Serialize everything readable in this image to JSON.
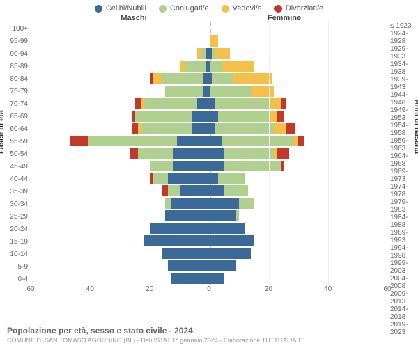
{
  "legend": [
    {
      "label": "Celibi/Nubili",
      "color": "#3b6a99"
    },
    {
      "label": "Coniugati/e",
      "color": "#b0d090"
    },
    {
      "label": "Vedovi/e",
      "color": "#f5c04a"
    },
    {
      "label": "Divorziati/e",
      "color": "#c0392b"
    }
  ],
  "header_m": "Maschi",
  "header_f": "Femmine",
  "ylabel_left": "Fasce di età",
  "ylabel_right": "Anni di nascita",
  "title": "Popolazione per età, sesso e stato civile - 2024",
  "subtitle": "COMUNE DI SAN TOMASO AGORDINO (BL) - Dati ISTAT 1° gennaio 2024 - Elaborazione TUTTITALIA.IT",
  "xmax": 60,
  "xticks": [
    60,
    40,
    20,
    0,
    20,
    40,
    60
  ],
  "colors": {
    "celibi": "#3b6a99",
    "coniugati": "#b0d090",
    "vedovi": "#f5c04a",
    "divorziati": "#c0392b",
    "grid": "#eeeeee",
    "dash": "#bbbbbb"
  },
  "rows": [
    {
      "age": "100+",
      "birth": "≤ 1923",
      "m": {
        "c": 0,
        "co": 0,
        "v": 0,
        "d": 0
      },
      "f": {
        "c": 0,
        "co": 0,
        "v": 0,
        "d": 0
      }
    },
    {
      "age": "95-99",
      "birth": "1924-1928",
      "m": {
        "c": 0,
        "co": 0,
        "v": 0,
        "d": 0
      },
      "f": {
        "c": 0,
        "co": 0,
        "v": 3,
        "d": 0
      }
    },
    {
      "age": "90-94",
      "birth": "1929-1933",
      "m": {
        "c": 1,
        "co": 2,
        "v": 1,
        "d": 0
      },
      "f": {
        "c": 1,
        "co": 1,
        "v": 5,
        "d": 0
      }
    },
    {
      "age": "85-89",
      "birth": "1934-1938",
      "m": {
        "c": 1,
        "co": 7,
        "v": 2,
        "d": 0
      },
      "f": {
        "c": 0,
        "co": 4,
        "v": 11,
        "d": 0
      }
    },
    {
      "age": "80-84",
      "birth": "1939-1943",
      "m": {
        "c": 2,
        "co": 14,
        "v": 3,
        "d": 1
      },
      "f": {
        "c": 1,
        "co": 7,
        "v": 13,
        "d": 0
      }
    },
    {
      "age": "75-79",
      "birth": "1944-1948",
      "m": {
        "c": 2,
        "co": 13,
        "v": 0,
        "d": 0
      },
      "f": {
        "c": 0,
        "co": 14,
        "v": 8,
        "d": 0
      }
    },
    {
      "age": "70-74",
      "birth": "1949-1953",
      "m": {
        "c": 4,
        "co": 18,
        "v": 1,
        "d": 2
      },
      "f": {
        "c": 2,
        "co": 18,
        "v": 4,
        "d": 2
      }
    },
    {
      "age": "65-69",
      "birth": "1954-1958",
      "m": {
        "c": 6,
        "co": 19,
        "v": 0,
        "d": 1
      },
      "f": {
        "c": 3,
        "co": 17,
        "v": 3,
        "d": 2
      }
    },
    {
      "age": "60-64",
      "birth": "1959-1963",
      "m": {
        "c": 6,
        "co": 17,
        "v": 1,
        "d": 2
      },
      "f": {
        "c": 2,
        "co": 20,
        "v": 4,
        "d": 3
      }
    },
    {
      "age": "55-59",
      "birth": "1964-1968",
      "m": {
        "c": 11,
        "co": 30,
        "v": 0,
        "d": 6
      },
      "f": {
        "c": 4,
        "co": 24,
        "v": 2,
        "d": 2
      }
    },
    {
      "age": "50-54",
      "birth": "1969-1973",
      "m": {
        "c": 12,
        "co": 12,
        "v": 0,
        "d": 3
      },
      "f": {
        "c": 5,
        "co": 17,
        "v": 1,
        "d": 4
      }
    },
    {
      "age": "45-49",
      "birth": "1974-1978",
      "m": {
        "c": 12,
        "co": 8,
        "v": 0,
        "d": 0
      },
      "f": {
        "c": 5,
        "co": 19,
        "v": 0,
        "d": 1
      }
    },
    {
      "age": "40-44",
      "birth": "1979-1983",
      "m": {
        "c": 14,
        "co": 5,
        "v": 0,
        "d": 1
      },
      "f": {
        "c": 3,
        "co": 9,
        "v": 0,
        "d": 0
      }
    },
    {
      "age": "35-39",
      "birth": "1984-1988",
      "m": {
        "c": 10,
        "co": 4,
        "v": 0,
        "d": 2
      },
      "f": {
        "c": 5,
        "co": 8,
        "v": 0,
        "d": 0
      }
    },
    {
      "age": "30-34",
      "birth": "1989-1993",
      "m": {
        "c": 13,
        "co": 2,
        "v": 0,
        "d": 0
      },
      "f": {
        "c": 10,
        "co": 5,
        "v": 0,
        "d": 0
      }
    },
    {
      "age": "25-29",
      "birth": "1994-1998",
      "m": {
        "c": 15,
        "co": 0,
        "v": 0,
        "d": 0
      },
      "f": {
        "c": 9,
        "co": 1,
        "v": 0,
        "d": 0
      }
    },
    {
      "age": "20-24",
      "birth": "1999-2003",
      "m": {
        "c": 20,
        "co": 0,
        "v": 0,
        "d": 0
      },
      "f": {
        "c": 12,
        "co": 0,
        "v": 0,
        "d": 0
      }
    },
    {
      "age": "15-19",
      "birth": "2004-2008",
      "m": {
        "c": 22,
        "co": 0,
        "v": 0,
        "d": 0
      },
      "f": {
        "c": 15,
        "co": 0,
        "v": 0,
        "d": 0
      }
    },
    {
      "age": "10-14",
      "birth": "2009-2013",
      "m": {
        "c": 16,
        "co": 0,
        "v": 0,
        "d": 0
      },
      "f": {
        "c": 14,
        "co": 0,
        "v": 0,
        "d": 0
      }
    },
    {
      "age": "5-9",
      "birth": "2014-2018",
      "m": {
        "c": 14,
        "co": 0,
        "v": 0,
        "d": 0
      },
      "f": {
        "c": 9,
        "co": 0,
        "v": 0,
        "d": 0
      }
    },
    {
      "age": "0-4",
      "birth": "2019-2023",
      "m": {
        "c": 13,
        "co": 0,
        "v": 0,
        "d": 0
      },
      "f": {
        "c": 5,
        "co": 0,
        "v": 0,
        "d": 0
      }
    }
  ]
}
